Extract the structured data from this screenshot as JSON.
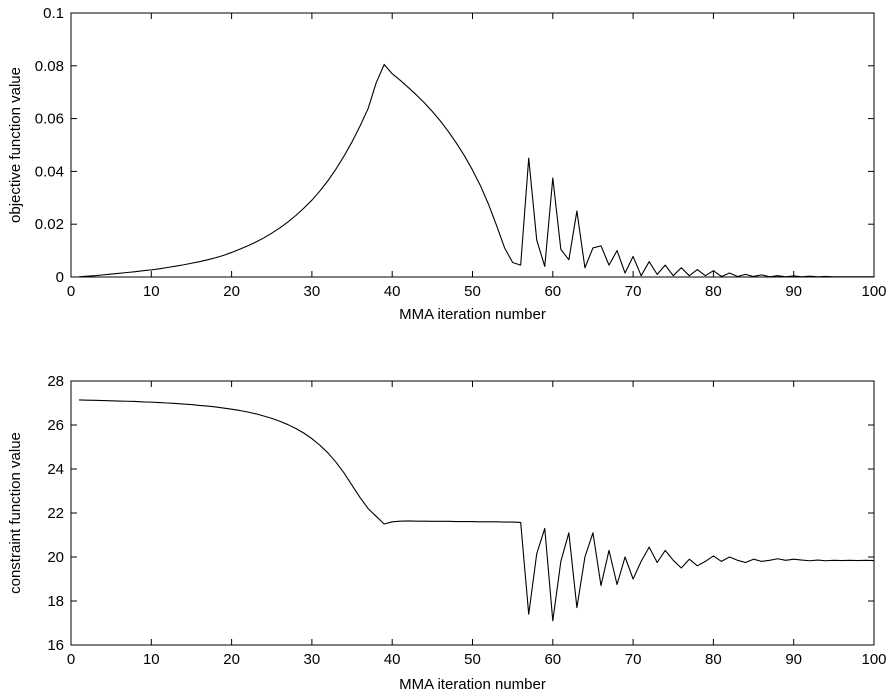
{
  "chart_data": [
    {
      "type": "line",
      "xlabel": "MMA iteration number",
      "ylabel": "objective function value",
      "xlim": [
        0,
        100
      ],
      "ylim": [
        0,
        0.1
      ],
      "xticks": [
        "0",
        "10",
        "20",
        "30",
        "40",
        "50",
        "60",
        "70",
        "80",
        "90",
        "100"
      ],
      "yticks": [
        "0",
        "0.02",
        "0.04",
        "0.06",
        "0.08",
        "0.1"
      ],
      "grid": false,
      "series": [
        {
          "x": [
            1,
            2,
            3,
            4,
            5,
            6,
            7,
            8,
            9,
            10,
            11,
            12,
            13,
            14,
            15,
            16,
            17,
            18,
            19,
            20,
            21,
            22,
            23,
            24,
            25,
            26,
            27,
            28,
            29,
            30,
            31,
            32,
            33,
            34,
            35,
            36,
            37,
            38,
            39,
            40,
            41,
            42,
            43,
            44,
            45,
            46,
            47,
            48,
            49,
            50,
            51,
            52,
            53,
            54,
            55,
            56,
            57,
            58,
            59,
            60,
            61,
            62,
            63,
            64,
            65,
            66,
            67,
            68,
            69,
            70,
            71,
            72,
            73,
            74,
            75,
            76,
            77,
            78,
            79,
            80,
            81,
            82,
            83,
            84,
            85,
            86,
            87,
            88,
            89,
            90,
            91,
            92,
            93,
            94,
            95,
            96,
            97,
            98,
            99,
            100
          ],
          "y": [
            0.0001,
            0.0003,
            0.0005,
            0.0008,
            0.0011,
            0.0014,
            0.0017,
            0.002,
            0.0024,
            0.0027,
            0.0031,
            0.0036,
            0.0041,
            0.0046,
            0.0052,
            0.0058,
            0.0065,
            0.0073,
            0.0082,
            0.0093,
            0.0105,
            0.0118,
            0.0132,
            0.0148,
            0.0166,
            0.0186,
            0.0208,
            0.0233,
            0.0261,
            0.0291,
            0.0326,
            0.0365,
            0.0409,
            0.0458,
            0.0512,
            0.0572,
            0.0638,
            0.0735,
            0.0805,
            0.077,
            0.0745,
            0.0718,
            0.069,
            0.066,
            0.0627,
            0.0591,
            0.0551,
            0.0507,
            0.0459,
            0.0405,
            0.0345,
            0.0275,
            0.0195,
            0.011,
            0.0055,
            0.0045,
            0.045,
            0.014,
            0.004,
            0.0375,
            0.0105,
            0.0065,
            0.025,
            0.0035,
            0.011,
            0.0118,
            0.0045,
            0.01,
            0.0015,
            0.0078,
            0.0005,
            0.0058,
            0.001,
            0.0045,
            0.0005,
            0.0035,
            0.0005,
            0.0028,
            0.0005,
            0.0024,
            0.0002,
            0.0015,
            0.0002,
            0.001,
            0.0002,
            0.0008,
            0.0001,
            0.0005,
            0.0001,
            0.0004,
            0.0001,
            0.0003,
            0.0001,
            0.0002,
            0.0001,
            0.0001,
            0.0001,
            0.0001,
            0.0001,
            0.0001
          ]
        }
      ]
    },
    {
      "type": "line",
      "xlabel": "MMA iteration number",
      "ylabel": "constraint function value",
      "xlim": [
        0,
        100
      ],
      "ylim": [
        16,
        28
      ],
      "xticks": [
        "0",
        "10",
        "20",
        "30",
        "40",
        "50",
        "60",
        "70",
        "80",
        "90",
        "100"
      ],
      "yticks": [
        "16",
        "18",
        "20",
        "22",
        "24",
        "26",
        "28"
      ],
      "grid": false,
      "series": [
        {
          "x": [
            1,
            2,
            3,
            4,
            5,
            6,
            7,
            8,
            9,
            10,
            11,
            12,
            13,
            14,
            15,
            16,
            17,
            18,
            19,
            20,
            21,
            22,
            23,
            24,
            25,
            26,
            27,
            28,
            29,
            30,
            31,
            32,
            33,
            34,
            35,
            36,
            37,
            38,
            39,
            40,
            41,
            42,
            43,
            44,
            45,
            46,
            47,
            48,
            49,
            50,
            51,
            52,
            53,
            54,
            55,
            56,
            57,
            58,
            59,
            60,
            61,
            62,
            63,
            64,
            65,
            66,
            67,
            68,
            69,
            70,
            71,
            72,
            73,
            74,
            75,
            76,
            77,
            78,
            79,
            80,
            81,
            82,
            83,
            84,
            85,
            86,
            87,
            88,
            89,
            90,
            91,
            92,
            93,
            94,
            95,
            96,
            97,
            98,
            99,
            100
          ],
          "y": [
            27.14,
            27.13,
            27.12,
            27.11,
            27.1,
            27.09,
            27.08,
            27.07,
            27.05,
            27.04,
            27.02,
            27.0,
            26.98,
            26.95,
            26.93,
            26.89,
            26.86,
            26.82,
            26.77,
            26.72,
            26.66,
            26.59,
            26.51,
            26.41,
            26.3,
            26.17,
            26.02,
            25.84,
            25.63,
            25.38,
            25.08,
            24.73,
            24.31,
            23.82,
            23.26,
            22.7,
            22.2,
            21.85,
            21.5,
            21.6,
            21.63,
            21.64,
            21.63,
            21.63,
            21.62,
            21.62,
            21.62,
            21.61,
            21.61,
            21.61,
            21.6,
            21.6,
            21.6,
            21.59,
            21.59,
            21.57,
            17.4,
            20.15,
            21.3,
            17.1,
            19.8,
            21.1,
            17.7,
            20.0,
            21.1,
            18.7,
            20.3,
            18.75,
            20.0,
            19.0,
            19.8,
            20.45,
            19.75,
            20.3,
            19.85,
            19.5,
            19.9,
            19.6,
            19.8,
            20.05,
            19.8,
            20.0,
            19.85,
            19.75,
            19.9,
            19.8,
            19.85,
            19.92,
            19.85,
            19.9,
            19.86,
            19.83,
            19.86,
            19.83,
            19.85,
            19.84,
            19.85,
            19.84,
            19.85,
            19.84
          ]
        }
      ]
    }
  ]
}
